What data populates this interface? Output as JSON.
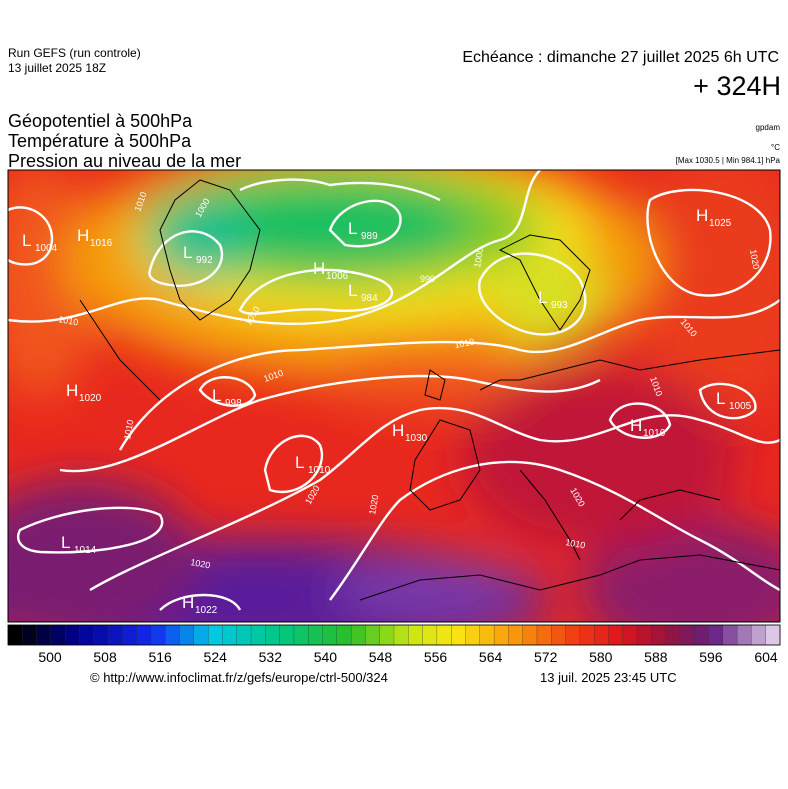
{
  "header": {
    "run": "Run GEFS (run controle)",
    "run_date": "13 juillet 2025 18Z",
    "valid": "Echéance : dimanche 27 juillet 2025 6h UTC",
    "lead": "+ 324H"
  },
  "fields": [
    "Géopotentiel à 500hPa",
    "Température à 500hPa",
    "Pression au niveau de la mer"
  ],
  "units": {
    "geopotential": "gpdam",
    "temperature": "°C",
    "pressure": "[Max 1030.5 | Min 984.1] hPa"
  },
  "centers": [
    {
      "letter": "L",
      "label": "1004"
    },
    {
      "letter": "H",
      "label": "1016"
    },
    {
      "letter": "L",
      "label": "992"
    },
    {
      "letter": "L",
      "label": "989"
    },
    {
      "letter": "H",
      "label": "1006"
    },
    {
      "letter": "L",
      "label": "984"
    },
    {
      "letter": "L",
      "label": "993"
    },
    {
      "letter": "H",
      "label": "1025"
    },
    {
      "letter": "H",
      "label": "1020"
    },
    {
      "letter": "L",
      "label": "998"
    },
    {
      "letter": "H",
      "label": "1030"
    },
    {
      "letter": "L",
      "label": "1010"
    },
    {
      "letter": "H",
      "label": "1016"
    },
    {
      "letter": "L",
      "label": "1005"
    },
    {
      "letter": "L",
      "label": "1014"
    },
    {
      "letter": "H",
      "label": "1022"
    }
  ],
  "isobar_labels": [
    "1010",
    "1000",
    "1010",
    "1010",
    "1010",
    "990",
    "1000",
    "1010",
    "1010",
    "1020",
    "1010",
    "1020",
    "1020",
    "1020",
    "1010",
    "1020",
    "1010"
  ],
  "colorbar": {
    "ticks": [
      500,
      508,
      516,
      524,
      532,
      540,
      548,
      556,
      564,
      572,
      580,
      588,
      596,
      604
    ]
  },
  "footer": {
    "url": "© http://www.infoclimat.fr/z/gefs/europe/ctrl-500/324",
    "time": "13 juil. 2025 23:45 UTC"
  }
}
